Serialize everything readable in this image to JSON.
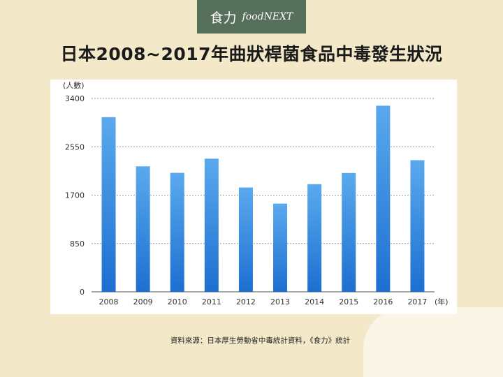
{
  "logo": {
    "cn": "食力",
    "en": "foodNEXT"
  },
  "title": "日本2008~2017年曲狀桿菌食品中毒發生狀況",
  "source": "資料來源：日本厚生勞動省中毒統計資料，《食力》統計",
  "colors": {
    "bar_top": "#5aa9ee",
    "bar_bottom": "#1d6fd0",
    "logo_bg": "#57705c",
    "background": "#f3e8c8"
  },
  "chart_data": {
    "type": "bar",
    "categories": [
      "2008",
      "2009",
      "2010",
      "2011",
      "2012",
      "2013",
      "2014",
      "2015",
      "2016",
      "2017"
    ],
    "values": [
      3071,
      2206,
      2092,
      2341,
      1834,
      1551,
      1893,
      2089,
      3272,
      2315
    ],
    "xlabel": "(年)",
    "ylabel": "(人數)",
    "ylim": [
      0,
      3400
    ],
    "yticks": [
      "0",
      "850",
      "1700",
      "2550",
      "3400"
    ],
    "grid": true
  }
}
